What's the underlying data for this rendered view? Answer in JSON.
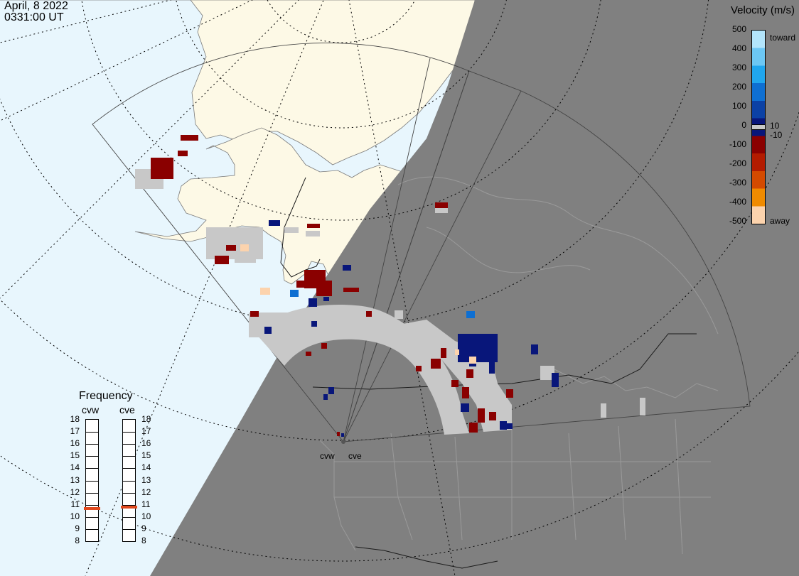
{
  "header": {
    "date": "April, 8 2022",
    "time": "0331:00 UT"
  },
  "legend": {
    "title": "Velocity (m/s)",
    "ticks": [
      "500",
      "400",
      "300",
      "200",
      "100",
      "0",
      "-100",
      "-200",
      "-300",
      "-400",
      "-500"
    ],
    "inner_ticks": [
      "10",
      "-10"
    ],
    "toward_label": "toward",
    "away_label": "away",
    "colors": [
      "#b3e5fb",
      "#6cc7f4",
      "#20a6ee",
      "#0e6fd2",
      "#0b41a5",
      "#08167a",
      "#8a0000",
      "#b31b00",
      "#d44a00",
      "#f08b00",
      "#fcd3ad"
    ]
  },
  "frequency": {
    "title": "Frequency",
    "radars": [
      "cvw",
      "cve"
    ],
    "levels": [
      "18",
      "17",
      "16",
      "15",
      "14",
      "13",
      "12",
      "11",
      "10",
      "9",
      "8"
    ],
    "cvw_mhz": 10.7,
    "cve_mhz": 10.8,
    "marker_color": "#e0481d"
  },
  "radar_sites": [
    "cvw",
    "cve"
  ],
  "colors": {
    "ocean": "#e8f6fd",
    "land_day": "#fdf9e6",
    "night": "#808080",
    "scatter_ground": "#c8c8c8"
  }
}
